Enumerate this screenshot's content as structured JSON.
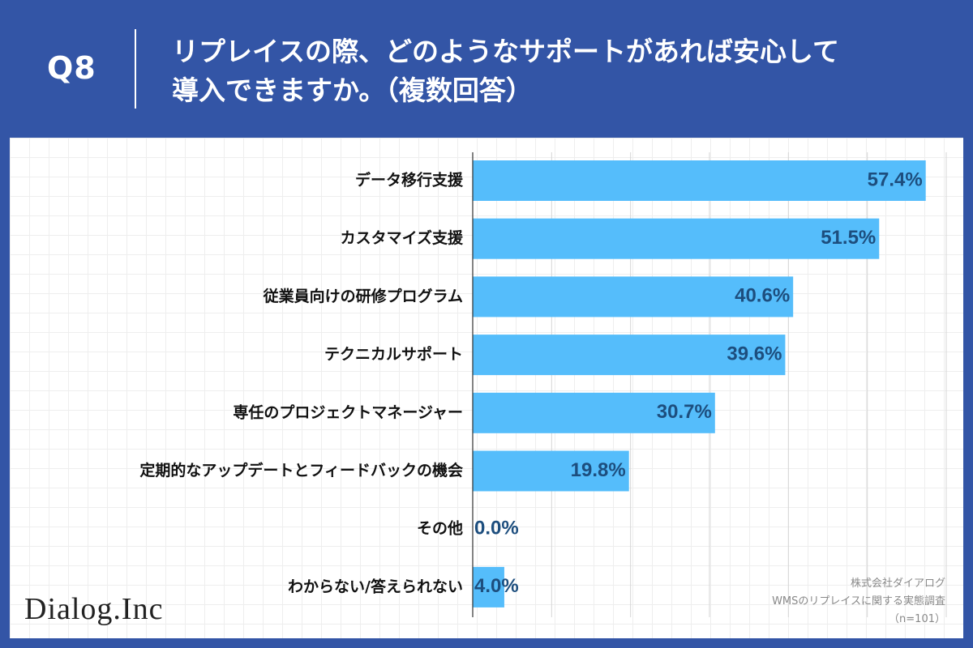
{
  "header": {
    "qnum": "Q8",
    "title_line1": "リプレイスの際、どのようなサポートがあれば安心して",
    "title_line2": "導入できますか。（複数回答）"
  },
  "footer": {
    "logo": "Dialog.Inc",
    "company": "株式会社ダイアログ",
    "survey": "WMSのリプレイスに関する実態調査",
    "sample": "（n=101）"
  },
  "colors": {
    "background": "#3355a6",
    "bar": "#55bdfb",
    "value_label": "#1d4e7e",
    "category_label": "#111111",
    "grid": "#d5d5d5"
  },
  "chart_data": {
    "type": "bar",
    "orientation": "horizontal",
    "title": "リプレイスの際、どのようなサポートがあれば安心して導入できますか。（複数回答）",
    "categories": [
      "データ移行支援",
      "カスタマイズ支援",
      "従業員向けの研修プログラム",
      "テクニカルサポート",
      "専任のプロジェクトマネージャー",
      "定期的なアップデートとフィードバックの機会",
      "その他",
      "わからない/答えられない"
    ],
    "values": [
      57.4,
      51.5,
      40.6,
      39.6,
      30.7,
      19.8,
      0.0,
      4.0
    ],
    "value_labels": [
      "57.4%",
      "51.5%",
      "40.6%",
      "39.6%",
      "30.7%",
      "19.8%",
      "0.0%",
      "4.0%"
    ],
    "unit": "%",
    "xlim": [
      0,
      60
    ],
    "grid": true,
    "legend": "none"
  }
}
